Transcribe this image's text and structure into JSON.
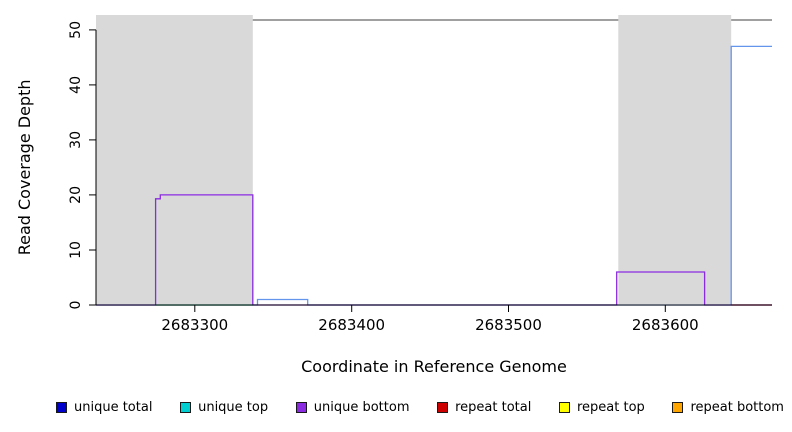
{
  "chart_data": {
    "type": "line",
    "title": "",
    "xlabel": "Coordinate in Reference Genome",
    "ylabel": "Read Coverage Depth",
    "xlim": [
      2683237,
      2683668
    ],
    "ylim": [
      0,
      52.7
    ],
    "x_ticks": [
      2683300,
      2683400,
      2683500,
      2683600
    ],
    "y_ticks": [
      0,
      10,
      20,
      30,
      40,
      50
    ],
    "grid": false,
    "legend_position": "bottom",
    "box_top_value": 51.8,
    "shaded_regions": [
      {
        "x0": 2683237,
        "x1": 2683337,
        "color": "#d9d9d9"
      },
      {
        "x0": 2683570,
        "x1": 2683642,
        "color": "#d9d9d9"
      }
    ],
    "series": [
      {
        "name": "unique total",
        "color": "#6495ed",
        "points": [
          [
            2683237,
            0
          ],
          [
            2683340,
            0
          ],
          [
            2683340,
            1
          ],
          [
            2683372,
            1
          ],
          [
            2683372,
            0
          ],
          [
            2683642,
            0
          ],
          [
            2683642,
            47
          ],
          [
            2683668,
            47
          ]
        ]
      },
      {
        "name": "unique bottom",
        "color": "#8a2be2",
        "points": [
          [
            2683237,
            0
          ],
          [
            2683275,
            0
          ],
          [
            2683275,
            19.3
          ],
          [
            2683278,
            19.3
          ],
          [
            2683278,
            20
          ],
          [
            2683337,
            20
          ],
          [
            2683337,
            0
          ],
          [
            2683569,
            0
          ],
          [
            2683569,
            6
          ],
          [
            2683625,
            6
          ],
          [
            2683625,
            0
          ],
          [
            2683668,
            0
          ]
        ]
      },
      {
        "name": "green segment",
        "color": "#00bd39",
        "points": [
          [
            2683275,
            0
          ],
          [
            2683337,
            0
          ]
        ]
      },
      {
        "name": "red segment",
        "color": "#cd2626",
        "points": [
          [
            2683642,
            0
          ],
          [
            2683668,
            0
          ]
        ]
      }
    ],
    "legend": [
      {
        "label": "unique total",
        "color": "#0000cd"
      },
      {
        "label": "unique top",
        "color": "#00ced1"
      },
      {
        "label": "unique bottom",
        "color": "#8a2be2"
      },
      {
        "label": "repeat total",
        "color": "#cd0000"
      },
      {
        "label": "repeat top",
        "color": "#ffff00"
      },
      {
        "label": "repeat bottom",
        "color": "#ffa500"
      }
    ]
  }
}
